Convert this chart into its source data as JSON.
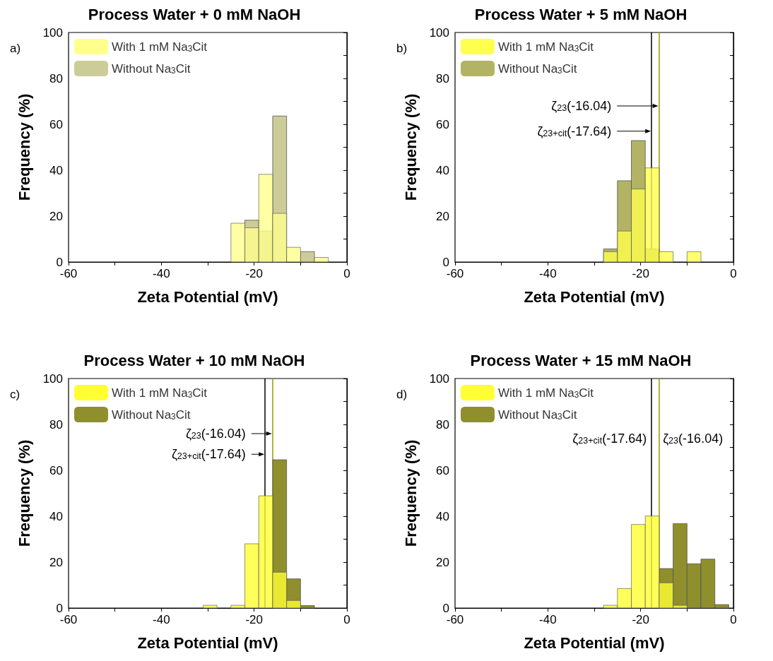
{
  "chart_data": [
    {
      "type": "histogram",
      "title": "Process Water + 0 mM NaOH",
      "annotations": [
        "a)"
      ],
      "xlabel": "Zeta Potential (mV)",
      "ylabel": "Frequency (%)",
      "legend": "top left",
      "xlim": [
        -60,
        0
      ],
      "xticks": [
        -60,
        {
          "value": -50,
          "label": null
        },
        -40,
        {
          "value": -30,
          "label": null
        },
        -20,
        {
          "value": -10,
          "label": null
        },
        0
      ],
      "ylim": [
        0,
        100
      ],
      "yticks": [
        0,
        {
          "value": 10,
          "label": null
        },
        20,
        {
          "value": 30,
          "label": null
        },
        40,
        {
          "value": 50,
          "label": null
        },
        60,
        {
          "value": 70,
          "label": null
        },
        80,
        {
          "value": 90,
          "label": null
        },
        100
      ],
      "bins": [
        -25,
        -22,
        -19,
        -16,
        -13,
        -10,
        -7,
        -4
      ],
      "series": [
        {
          "name": "With 1 mM Na$_{3}$Cit",
          "color": "#ffff8c",
          "values": [
            16.9,
            14.9,
            38.2,
            21.2,
            6.4,
            0,
            2.0
          ]
        },
        {
          "name": "Without Na$_{3}$Cit",
          "color": "#cccc99",
          "values": [
            0,
            18.2,
            13.5,
            63.6,
            0,
            4.5,
            0
          ]
        }
      ]
    },
    {
      "type": "histogram",
      "title": "Process Water + 5 mM NaOH",
      "annotations": [
        "b)"
      ],
      "xlabel": "Zeta Potential (mV)",
      "ylabel": "Frequency (%)",
      "legend": "top left",
      "xlim": [
        -60,
        0
      ],
      "xticks": [
        -60,
        {
          "value": -50,
          "label": null
        },
        -40,
        {
          "value": -30,
          "label": null
        },
        -20,
        {
          "value": -10,
          "label": null
        },
        0
      ],
      "ylim": [
        0,
        100
      ],
      "yticks": [
        0,
        {
          "value": 10,
          "label": null
        },
        20,
        {
          "value": 30,
          "label": null
        },
        40,
        {
          "value": 50,
          "label": null
        },
        60,
        {
          "value": 70,
          "label": null
        },
        80,
        {
          "value": 90,
          "label": null
        },
        100
      ],
      "ref_lines": [
        {
          "axis": "x",
          "value": -17.64,
          "label": "ζ$_{23+cit}$(-17.64)",
          "color": "#000000"
        },
        {
          "axis": "x",
          "value": -16.04,
          "label": "ζ$_{23}$(-16.04)",
          "color": "#999900"
        }
      ],
      "bins": [
        -28,
        -25,
        -22,
        -19,
        -16,
        -13,
        -10,
        -7
      ],
      "series": [
        {
          "name": "With 1 mM Na$_{3}$Cit",
          "color": "#ffff4d",
          "values": [
            4.5,
            13.5,
            31.8,
            41.0,
            4.5,
            0,
            4.5
          ]
        },
        {
          "name": "Without Na$_{3}$Cit",
          "color": "#b3b366",
          "values": [
            5.7,
            35.4,
            52.9,
            5.7,
            0,
            0,
            0
          ]
        }
      ]
    },
    {
      "type": "histogram",
      "title": "Process Water + 10 mM NaOH",
      "annotations": [
        "c)"
      ],
      "xlabel": "Zeta Potential (mV)",
      "ylabel": "Frequency (%)",
      "legend": "top left",
      "xlim": [
        -60,
        0
      ],
      "xticks": [
        -60,
        {
          "value": -50,
          "label": null
        },
        -40,
        {
          "value": -30,
          "label": null
        },
        -20,
        {
          "value": -10,
          "label": null
        },
        0
      ],
      "ylim": [
        0,
        100
      ],
      "yticks": [
        0,
        {
          "value": 10,
          "label": null
        },
        20,
        {
          "value": 30,
          "label": null
        },
        40,
        {
          "value": 50,
          "label": null
        },
        60,
        {
          "value": 70,
          "label": null
        },
        80,
        {
          "value": 90,
          "label": null
        },
        100
      ],
      "ref_lines": [
        {
          "axis": "x",
          "value": -17.64,
          "label": "ζ$_{23+cit}$(-17.64)",
          "color": "#000000"
        },
        {
          "axis": "x",
          "value": -16.04,
          "label": "ζ$_{23}$(-16.04)",
          "color": "#999900"
        }
      ],
      "bins": [
        -31,
        -28,
        -25,
        -22,
        -19,
        -16,
        -13,
        -10,
        -7
      ],
      "series": [
        {
          "name": "With 1 mM Na$_{3}$Cit",
          "color": "#ffff33",
          "values": [
            1.2,
            0,
            1.2,
            28.0,
            48.9,
            15.6,
            3.3,
            0
          ]
        },
        {
          "name": "Without Na$_{3}$Cit",
          "color": "#8f8f2e",
          "values": [
            0,
            0,
            0,
            0,
            0,
            64.6,
            12.7,
            1.1
          ]
        }
      ]
    },
    {
      "type": "histogram",
      "title": "Process Water + 15 mM NaOH",
      "annotations": [
        "d)"
      ],
      "xlabel": "Zeta Potential (mV)",
      "ylabel": "Frequency (%)",
      "legend": "top left",
      "xlim": [
        -60,
        0
      ],
      "xticks": [
        -60,
        {
          "value": -50,
          "label": null
        },
        -40,
        {
          "value": -30,
          "label": null
        },
        -20,
        {
          "value": -10,
          "label": null
        },
        0
      ],
      "ylim": [
        0,
        100
      ],
      "yticks": [
        0,
        {
          "value": 10,
          "label": null
        },
        20,
        {
          "value": 30,
          "label": null
        },
        40,
        {
          "value": 50,
          "label": null
        },
        60,
        {
          "value": 70,
          "label": null
        },
        80,
        {
          "value": 90,
          "label": null
        },
        100
      ],
      "ref_lines": [
        {
          "axis": "x",
          "value": -17.64,
          "label": "ζ$_{23+cit}$(-17.64)",
          "color": "#000000"
        },
        {
          "axis": "x",
          "value": -16.04,
          "label": "ζ$_{23}$(-16.04)",
          "color": "#999900"
        }
      ],
      "bins": [
        -28,
        -25,
        -22,
        -19,
        -16,
        -13,
        -10,
        -7,
        -4,
        -1
      ],
      "series": [
        {
          "name": "With 1 mM Na$_{3}$Cit",
          "color": "#ffff33",
          "values": [
            1.2,
            8.5,
            36.4,
            40.1,
            11.0,
            1.2,
            0,
            0,
            0
          ]
        },
        {
          "name": "Without Na$_{3}$Cit",
          "color": "#8f8f2e",
          "values": [
            0,
            0,
            0,
            0,
            17.2,
            36.8,
            19.3,
            21.3,
            1.5
          ]
        }
      ]
    }
  ]
}
